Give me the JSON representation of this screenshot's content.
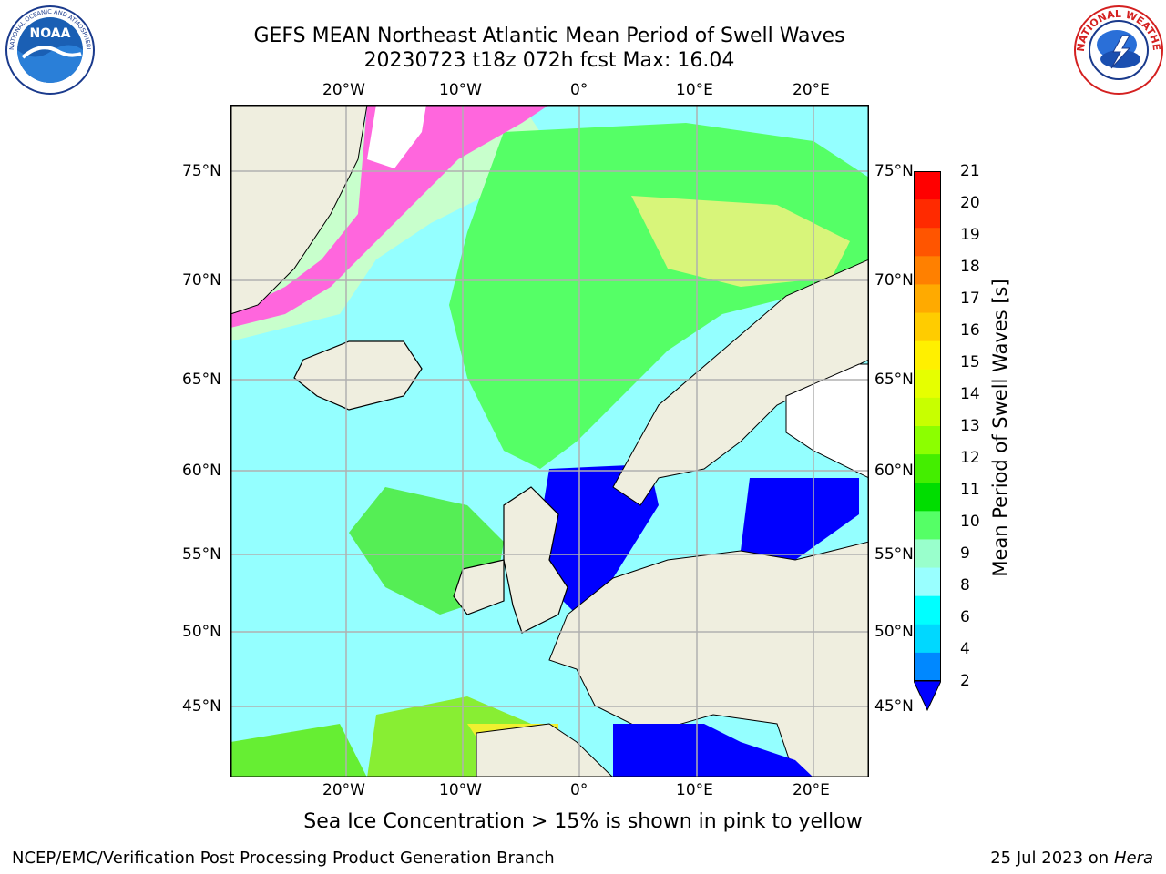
{
  "title": {
    "line1": "GEFS MEAN Northeast Atlantic Mean Period of Swell Waves",
    "line2": "20230723 t18z 072h fcst   Max: 16.04"
  },
  "logos": {
    "left": "noara-logo",
    "right": "national-weather-service-logo",
    "left_ring_text": "NATIONAL OCEANIC AND ATMOSPHERIC ADMINISTRATION · U.S. DEPARTMENT OF COMMERCE",
    "left_center_text": "NOAA",
    "right_ring_text": "NATIONAL WEATHER SERVICE"
  },
  "map": {
    "lon_labels_top": [
      "20°W",
      "10°W",
      "0°",
      "10°E",
      "20°E"
    ],
    "lon_labels_bottom": [
      "20°W",
      "10°W",
      "0°",
      "10°E",
      "20°E"
    ],
    "lat_labels_left": [
      "75°N",
      "70°N",
      "65°N",
      "60°N",
      "55°N",
      "50°N",
      "45°N"
    ],
    "lat_labels_right": [
      "75°N",
      "70°N",
      "65°N",
      "60°N",
      "55°N",
      "50°N",
      "45°N"
    ],
    "land_color": "#efeedf",
    "ocean_base_color": "#94ffff",
    "grid_color": "#b0b0b0"
  },
  "colorbar": {
    "ticks": [
      "21",
      "20",
      "19",
      "18",
      "17",
      "16",
      "15",
      "14",
      "13",
      "12",
      "11",
      "10",
      "9",
      "8",
      "6",
      "4",
      "2"
    ],
    "colors": [
      "#ff0000",
      "#ff2a00",
      "#ff5500",
      "#ff8000",
      "#ffaa00",
      "#ffcc00",
      "#fff000",
      "#e6ff00",
      "#c8ff00",
      "#8cff00",
      "#44ee00",
      "#00dd00",
      "#55ff66",
      "#99ffcc",
      "#99ffff",
      "#00ffff",
      "#00d8ff",
      "#0088ff"
    ],
    "extend_color": "#0000ff",
    "label": "Mean Period of Swell Waves [s]"
  },
  "note": "Sea Ice Concentration > 15% is shown in pink to yellow",
  "footer": {
    "left": "NCEP/EMC/Verification Post Processing Product Generation Branch",
    "right_date": "25 Jul 2023 on ",
    "right_host": "Hera"
  }
}
